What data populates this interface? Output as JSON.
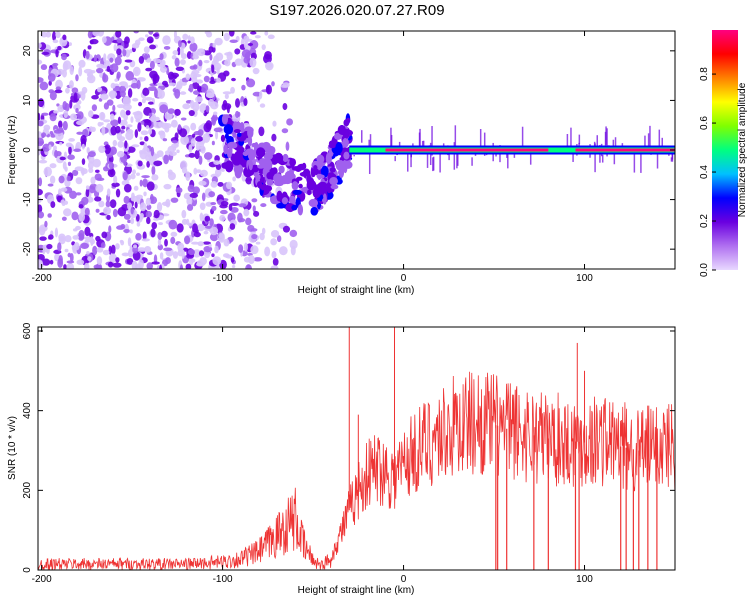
{
  "title": "S197.2026.020.07.27.R09",
  "chart_data": [
    {
      "type": "heatmap",
      "xlabel": "Height of straight line (km)",
      "ylabel": "Frequency (Hz)",
      "xlim": [
        -202,
        150
      ],
      "ylim": [
        -24,
        24
      ],
      "x_ticks": [
        -200,
        -100,
        0,
        100
      ],
      "y_ticks": [
        -20,
        -10,
        0,
        10,
        20
      ],
      "colorbar": {
        "label": "Normalized spectral amplitude",
        "range": [
          0,
          0.98
        ],
        "ticks": [
          0.0,
          0.2,
          0.4,
          0.6,
          0.8
        ],
        "colors": [
          "#e8d8ff",
          "#b070f0",
          "#6a00e0",
          "#0000ff",
          "#00c0ff",
          "#00ff80",
          "#80ff00",
          "#ffff00",
          "#ff8000",
          "#ff0000",
          "#ff0080"
        ]
      },
      "regions": [
        {
          "description": "scattered noise",
          "x_range": [
            -202,
            -100
          ],
          "amplitude": 0.1
        },
        {
          "description": "descending drift",
          "points": [
            [
              -100,
              2
            ],
            [
              -85,
              -1
            ],
            [
              -70,
              -6
            ],
            [
              -50,
              -8
            ],
            [
              -40,
              -4
            ],
            [
              -30,
              2
            ]
          ]
        },
        {
          "description": "steady carrier",
          "x_range": [
            -30,
            150
          ],
          "frequency": 0,
          "amplitude": 0.95
        }
      ]
    },
    {
      "type": "line",
      "xlabel": "Height of straight line (km)",
      "ylabel": "SNR (10 * v/v)",
      "xlim": [
        -202,
        150
      ],
      "ylim": [
        0,
        610
      ],
      "x_ticks": [
        -200,
        -100,
        0,
        100
      ],
      "y_ticks": [
        0,
        200,
        400,
        600
      ],
      "color": "#ee3333",
      "series": [
        {
          "name": "",
          "x": [
            -202,
            -180,
            -160,
            -140,
            -120,
            -100,
            -90,
            -80,
            -70,
            -65,
            -60,
            -55,
            -50,
            -45,
            -40,
            -35,
            -30,
            -25,
            -20,
            -15,
            -10,
            -5,
            0,
            10,
            20,
            30,
            40,
            50,
            60,
            70,
            80,
            90,
            100,
            110,
            120,
            130,
            140,
            150
          ],
          "y": [
            15,
            15,
            15,
            15,
            15,
            20,
            28,
            45,
            85,
            110,
            130,
            60,
            25,
            12,
            30,
            90,
            150,
            200,
            240,
            260,
            250,
            230,
            270,
            310,
            340,
            365,
            372,
            365,
            350,
            340,
            330,
            325,
            320,
            330,
            310,
            300,
            310,
            320
          ],
          "spikes": [
            {
              "x": -30,
              "y": 610
            },
            {
              "x": -25,
              "y": 390
            },
            {
              "x": -5,
              "y": 610
            },
            {
              "x": 96,
              "y": 570
            },
            {
              "x": 100,
              "y": 500
            }
          ],
          "dropouts": [
            51,
            52,
            57,
            72,
            80,
            95,
            97,
            120,
            123,
            127,
            130,
            135,
            140
          ]
        }
      ]
    }
  ]
}
